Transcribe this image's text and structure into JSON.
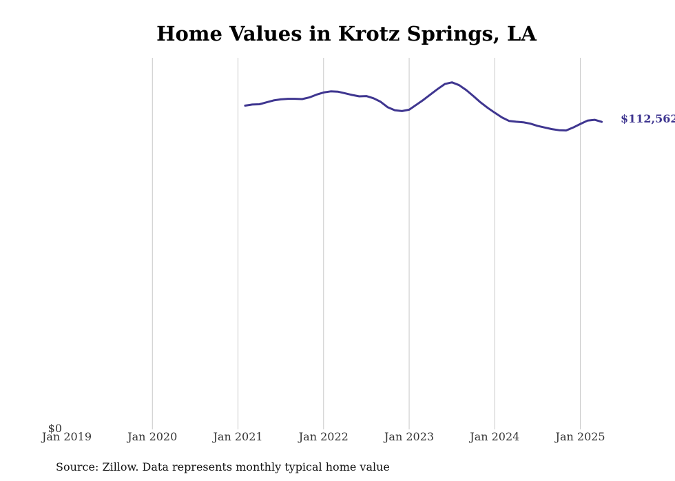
{
  "chart_data": {
    "type": "line",
    "title": "Home Values in Krotz Springs, LA",
    "xlabel": "",
    "ylabel": "",
    "x_ticks": [
      "Jan 2019",
      "Jan 2020",
      "Jan 2021",
      "Jan 2022",
      "Jan 2023",
      "Jan 2024",
      "Jan 2025"
    ],
    "x_range": [
      "2019-01",
      "2025-05"
    ],
    "y_ticks": [
      {
        "value": 0,
        "label": "$0"
      }
    ],
    "ylim": [
      0,
      136000
    ],
    "grid": "vertical",
    "series": [
      {
        "name": "",
        "color": "#3f3690",
        "end_label": "$112,562",
        "points": [
          [
            "2021-02",
            118500
          ],
          [
            "2021-03",
            118900
          ],
          [
            "2021-04",
            119000
          ],
          [
            "2021-05",
            119700
          ],
          [
            "2021-06",
            120400
          ],
          [
            "2021-07",
            120800
          ],
          [
            "2021-08",
            121000
          ],
          [
            "2021-09",
            121000
          ],
          [
            "2021-10",
            120900
          ],
          [
            "2021-11",
            121500
          ],
          [
            "2021-12",
            122500
          ],
          [
            "2022-01",
            123300
          ],
          [
            "2022-02",
            123700
          ],
          [
            "2022-03",
            123600
          ],
          [
            "2022-04",
            123000
          ],
          [
            "2022-05",
            122400
          ],
          [
            "2022-06",
            121900
          ],
          [
            "2022-07",
            122000
          ],
          [
            "2022-08",
            121200
          ],
          [
            "2022-09",
            119900
          ],
          [
            "2022-10",
            117900
          ],
          [
            "2022-11",
            116800
          ],
          [
            "2022-12",
            116500
          ],
          [
            "2023-01",
            117000
          ],
          [
            "2023-02",
            118800
          ],
          [
            "2023-03",
            120600
          ],
          [
            "2023-04",
            122600
          ],
          [
            "2023-05",
            124600
          ],
          [
            "2023-06",
            126400
          ],
          [
            "2023-07",
            127000
          ],
          [
            "2023-08",
            126000
          ],
          [
            "2023-09",
            124200
          ],
          [
            "2023-10",
            122000
          ],
          [
            "2023-11",
            119700
          ],
          [
            "2023-12",
            117700
          ],
          [
            "2024-01",
            115900
          ],
          [
            "2024-02",
            114200
          ],
          [
            "2024-03",
            112900
          ],
          [
            "2024-04",
            112600
          ],
          [
            "2024-05",
            112400
          ],
          [
            "2024-06",
            111900
          ],
          [
            "2024-07",
            111100
          ],
          [
            "2024-08",
            110500
          ],
          [
            "2024-09",
            109900
          ],
          [
            "2024-10",
            109500
          ],
          [
            "2024-11",
            109400
          ],
          [
            "2024-12",
            110500
          ],
          [
            "2025-01",
            111800
          ],
          [
            "2025-02",
            113000
          ],
          [
            "2025-03",
            113300
          ],
          [
            "2025-04",
            112562
          ]
        ]
      }
    ]
  },
  "source_note": "Source: Zillow. Data represents monthly typical home value"
}
